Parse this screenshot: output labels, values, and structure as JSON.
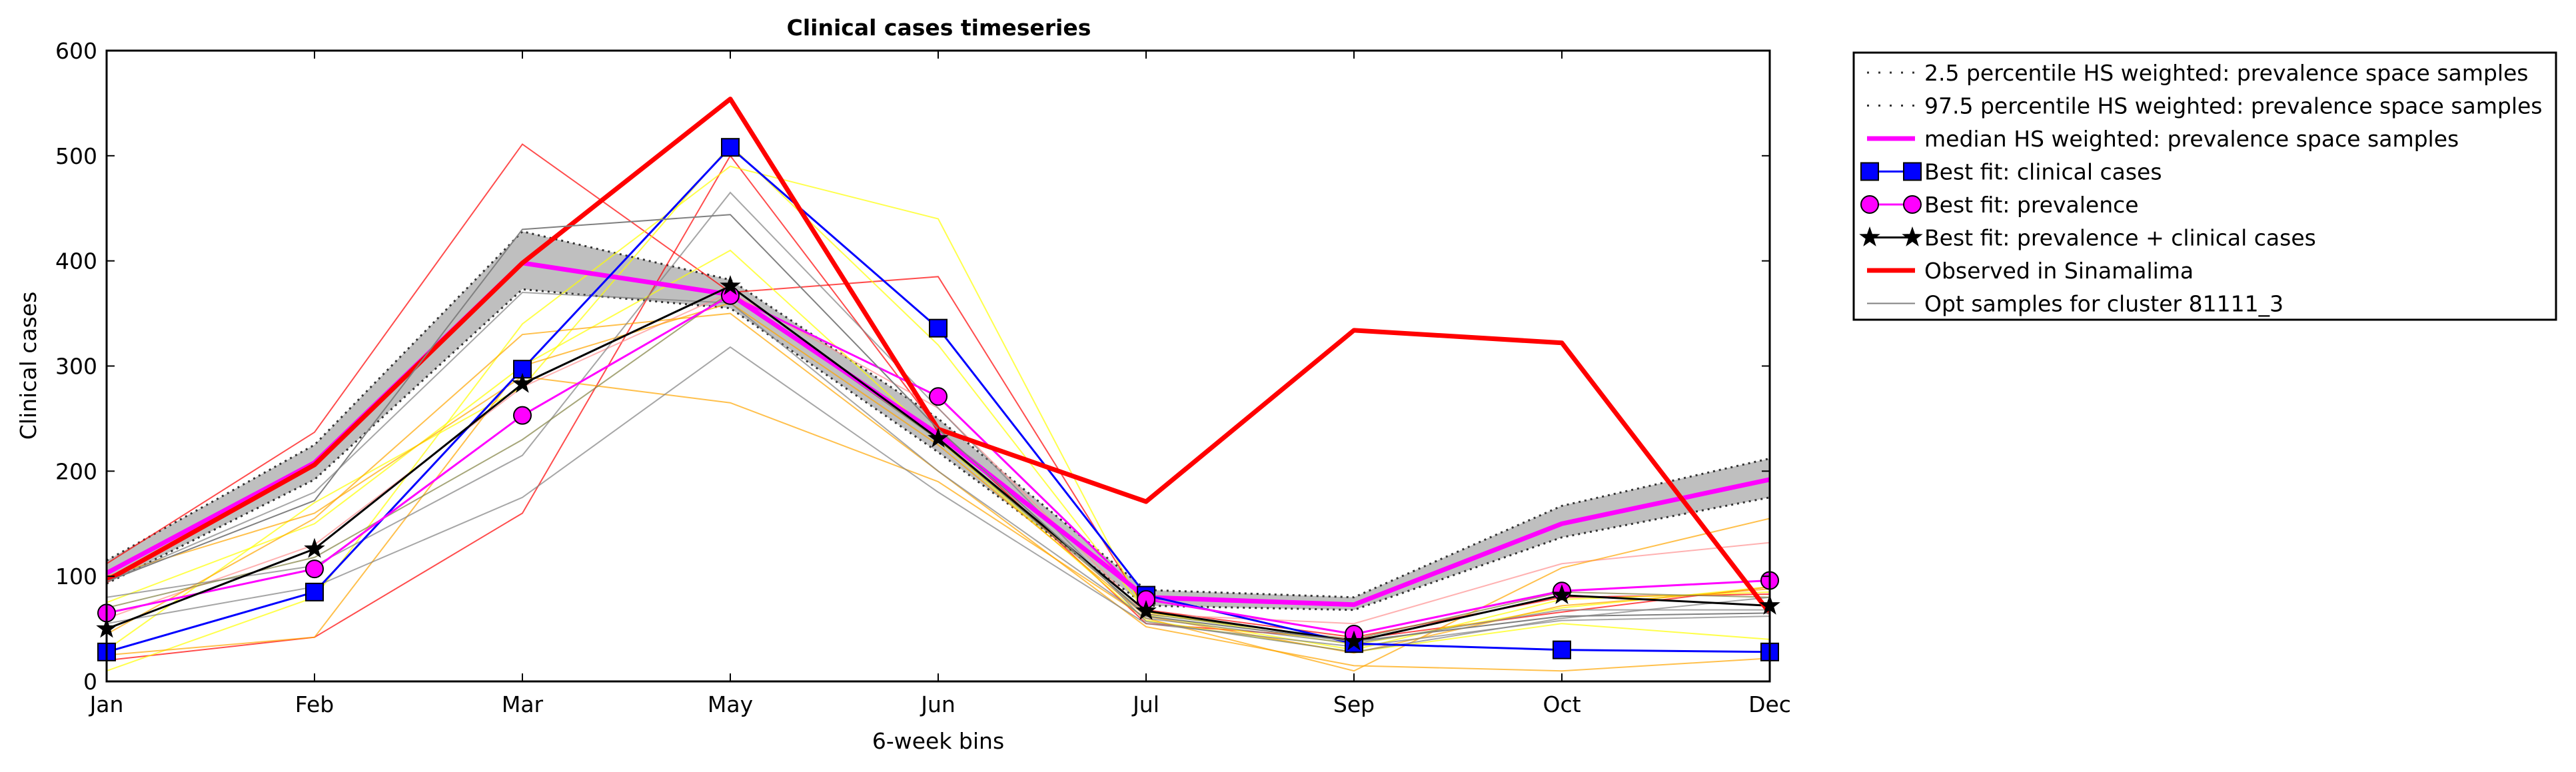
{
  "chart_data": {
    "type": "line",
    "title": "Clinical cases timeseries",
    "xlabel": "6-week bins",
    "ylabel": "Clinical cases",
    "categories": [
      "Jan",
      "Feb",
      "Mar",
      "May",
      "Jun",
      "Jul",
      "Sep",
      "Oct",
      "Dec"
    ],
    "ylim": [
      0,
      600
    ],
    "yticks": [
      "0",
      "100",
      "200",
      "300",
      "400",
      "500",
      "600"
    ],
    "grid": false,
    "legend_position": "outside-right-top",
    "band": {
      "lower_name": "2.5 percentile HS weighted: prevalence space samples",
      "upper_name": "97.5 percentile HS weighted: prevalence space samples",
      "lower": [
        93,
        192,
        373,
        355,
        218,
        72,
        68,
        137,
        175
      ],
      "upper": [
        115,
        225,
        428,
        382,
        250,
        87,
        80,
        167,
        212
      ],
      "fill_color": "#bfbfbf"
    },
    "series": [
      {
        "name": "median HS weighted: prevalence space samples",
        "color": "#ff00ff",
        "values": [
          103,
          208,
          398,
          368,
          235,
          80,
          73,
          150,
          192
        ]
      },
      {
        "name": "Best fit: clinical cases",
        "color": "#0000ff",
        "marker": "square",
        "values": [
          28,
          85,
          297,
          508,
          336,
          82,
          36,
          30,
          28
        ]
      },
      {
        "name": "Best fit: prevalence",
        "color": "#ff00ff",
        "marker": "circle",
        "values": [
          65,
          107,
          253,
          367,
          271,
          78,
          45,
          86,
          96
        ]
      },
      {
        "name": "Best fit: prevalence + clinical cases",
        "color": "#000000",
        "marker": "star",
        "values": [
          50,
          126,
          283,
          376,
          231,
          67,
          38,
          82,
          72
        ]
      },
      {
        "name": "Observed in Sinamalima",
        "color": "#ff0000",
        "values": [
          96,
          206,
          398,
          554,
          240,
          171,
          334,
          322,
          65
        ]
      },
      {
        "name": "Opt samples for cluster 81111_3",
        "color": "#808080",
        "values": [
          95,
          172,
          430,
          444,
          240,
          62,
          38,
          62,
          65
        ]
      }
    ],
    "opt_samples": [
      {
        "color": "#ff0000",
        "values": [
          112,
          237,
          511,
          370,
          385,
          68,
          42,
          80,
          83
        ]
      },
      {
        "color": "#ff0000",
        "values": [
          20,
          42,
          160,
          500,
          240,
          55,
          40,
          66,
          90
        ]
      },
      {
        "color": "#ff9090",
        "values": [
          60,
          130,
          280,
          370,
          260,
          64,
          55,
          112,
          132
        ]
      },
      {
        "color": "#ffff00",
        "values": [
          10,
          80,
          340,
          490,
          440,
          63,
          30,
          78,
          85
        ]
      },
      {
        "color": "#ffff00",
        "values": [
          30,
          170,
          280,
          510,
          320,
          66,
          35,
          70,
          90
        ]
      },
      {
        "color": "#ffff00",
        "values": [
          75,
          150,
          300,
          410,
          230,
          58,
          28,
          55,
          40
        ]
      },
      {
        "color": "#ffa500",
        "values": [
          45,
          155,
          330,
          350,
          200,
          52,
          15,
          10,
          22
        ]
      },
      {
        "color": "#ffa500",
        "values": [
          100,
          160,
          290,
          265,
          190,
          60,
          10,
          108,
          155
        ]
      },
      {
        "color": "#ffa500",
        "values": [
          25,
          42,
          300,
          360,
          225,
          62,
          27,
          72,
          88
        ]
      },
      {
        "color": "#808080",
        "values": [
          55,
          90,
          175,
          318,
          180,
          55,
          33,
          58,
          62
        ]
      },
      {
        "color": "#808080",
        "values": [
          80,
          110,
          215,
          465,
          260,
          57,
          28,
          60,
          80
        ]
      },
      {
        "color": "#808080",
        "values": [
          95,
          180,
          370,
          360,
          200,
          60,
          36,
          68,
          68
        ]
      },
      {
        "color": "#808040",
        "values": [
          70,
          118,
          230,
          370,
          230,
          64,
          40,
          85,
          80
        ]
      }
    ]
  }
}
